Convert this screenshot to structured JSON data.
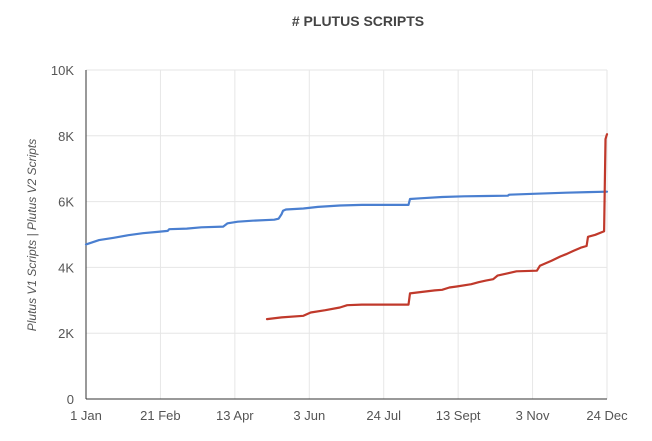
{
  "chart_data": {
    "type": "line",
    "title": "# PLUTUS SCRIPTS",
    "xlabel": "",
    "ylabel": "Plutus V1 Scripts | Plutus V2 Scripts",
    "x_ticks": [
      "1 Jan",
      "21 Feb",
      "13 Apr",
      "3 Jun",
      "24 Jul",
      "13 Sept",
      "3 Nov",
      "24 Dec"
    ],
    "y_ticks": [
      "0",
      "2K",
      "4K",
      "6K",
      "8K",
      "10K"
    ],
    "ylim": [
      0,
      10000
    ],
    "xlim_day_of_year": [
      1,
      358
    ],
    "grid": true,
    "legend": "none",
    "series": [
      {
        "color": "#4a7fd0",
        "points": [
          [
            1,
            4700
          ],
          [
            10,
            4830
          ],
          [
            20,
            4900
          ],
          [
            30,
            4980
          ],
          [
            40,
            5040
          ],
          [
            50,
            5080
          ],
          [
            57,
            5110
          ],
          [
            58,
            5160
          ],
          [
            70,
            5180
          ],
          [
            80,
            5220
          ],
          [
            95,
            5240
          ],
          [
            98,
            5340
          ],
          [
            105,
            5390
          ],
          [
            115,
            5420
          ],
          [
            130,
            5450
          ],
          [
            133,
            5480
          ],
          [
            135,
            5620
          ],
          [
            136,
            5720
          ],
          [
            138,
            5760
          ],
          [
            150,
            5790
          ],
          [
            160,
            5840
          ],
          [
            175,
            5880
          ],
          [
            190,
            5900
          ],
          [
            205,
            5900
          ],
          [
            222,
            5900
          ],
          [
            223,
            6080
          ],
          [
            230,
            6100
          ],
          [
            245,
            6140
          ],
          [
            260,
            6160
          ],
          [
            275,
            6170
          ],
          [
            290,
            6180
          ],
          [
            291,
            6210
          ],
          [
            310,
            6240
          ],
          [
            330,
            6270
          ],
          [
            345,
            6290
          ],
          [
            358,
            6300
          ]
        ]
      },
      {
        "color": "#c0392b",
        "points": [
          [
            125,
            2430
          ],
          [
            135,
            2480
          ],
          [
            150,
            2530
          ],
          [
            155,
            2630
          ],
          [
            165,
            2700
          ],
          [
            175,
            2780
          ],
          [
            180,
            2850
          ],
          [
            190,
            2870
          ],
          [
            200,
            2870
          ],
          [
            210,
            2870
          ],
          [
            220,
            2870
          ],
          [
            222,
            2870
          ],
          [
            223,
            3210
          ],
          [
            230,
            3250
          ],
          [
            240,
            3300
          ],
          [
            245,
            3320
          ],
          [
            250,
            3390
          ],
          [
            255,
            3420
          ],
          [
            265,
            3490
          ],
          [
            270,
            3550
          ],
          [
            275,
            3600
          ],
          [
            280,
            3640
          ],
          [
            283,
            3750
          ],
          [
            290,
            3820
          ],
          [
            296,
            3880
          ],
          [
            310,
            3900
          ],
          [
            312,
            4050
          ],
          [
            320,
            4200
          ],
          [
            326,
            4330
          ],
          [
            330,
            4400
          ],
          [
            335,
            4500
          ],
          [
            340,
            4600
          ],
          [
            344,
            4650
          ],
          [
            345,
            4930
          ],
          [
            350,
            4990
          ],
          [
            355,
            5080
          ],
          [
            356,
            5100
          ],
          [
            357,
            7900
          ],
          [
            358,
            8050
          ]
        ]
      }
    ]
  }
}
